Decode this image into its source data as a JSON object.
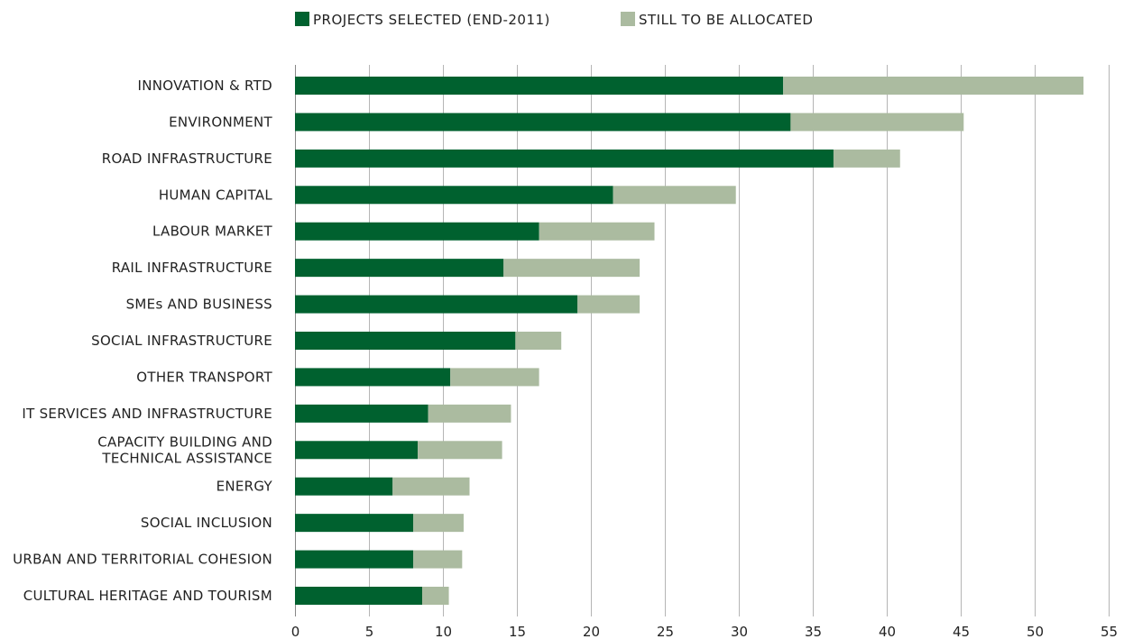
{
  "chart_data": {
    "type": "bar",
    "orientation": "horizontal",
    "stacked": true,
    "title": "",
    "xlabel": "",
    "ylabel": "",
    "xlim": [
      0,
      55
    ],
    "xticks": [
      0,
      5,
      10,
      15,
      20,
      25,
      30,
      35,
      40,
      45,
      50,
      55
    ],
    "grid": "vertical",
    "legend_position": "top",
    "categories": [
      [
        "INNOVATION & RTD"
      ],
      [
        "ENVIRONMENT"
      ],
      [
        "ROAD INFRASTRUCTURE"
      ],
      [
        "HUMAN CAPITAL"
      ],
      [
        "LABOUR MARKET"
      ],
      [
        "RAIL INFRASTRUCTURE"
      ],
      [
        "SMEs AND BUSINESS"
      ],
      [
        "SOCIAL INFRASTRUCTURE"
      ],
      [
        "OTHER TRANSPORT"
      ],
      [
        "IT SERVICES AND INFRASTRUCTURE"
      ],
      [
        "CAPACITY BUILDING AND",
        "TECHNICAL ASSISTANCE"
      ],
      [
        "ENERGY"
      ],
      [
        "SOCIAL INCLUSION"
      ],
      [
        "URBAN AND TERRITORIAL COHESION"
      ],
      [
        "CULTURAL HERITAGE AND TOURISM"
      ]
    ],
    "series": [
      {
        "name": "PROJECTS SELECTED (END-2011)",
        "color": "#00612f",
        "values": [
          33.0,
          33.5,
          36.4,
          21.5,
          16.5,
          14.1,
          19.1,
          14.9,
          10.5,
          9.0,
          8.3,
          6.6,
          8.0,
          8.0,
          8.6
        ]
      },
      {
        "name": "STILL TO BE ALLOCATED",
        "color": "#abbba0",
        "values": [
          20.3,
          11.7,
          4.5,
          8.3,
          7.8,
          9.2,
          4.2,
          3.1,
          6.0,
          5.6,
          5.7,
          5.2,
          3.4,
          3.3,
          1.8
        ]
      }
    ]
  }
}
